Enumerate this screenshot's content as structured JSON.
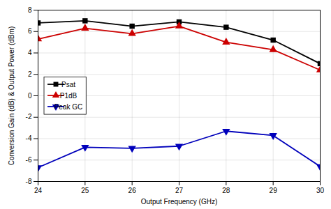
{
  "chart_data": {
    "type": "line",
    "xlabel": "Output Frequency (GHz)",
    "ylabel": "Conversion Gain (dB) & Output Power (dBm)",
    "x": [
      24,
      25,
      26,
      27,
      28,
      29,
      30
    ],
    "series": [
      {
        "name": "Psat",
        "color": "#000000",
        "marker": "square",
        "values": [
          6.8,
          7.0,
          6.5,
          6.9,
          6.4,
          5.2,
          3.0
        ]
      },
      {
        "name": "P1dB",
        "color": "#cc0000",
        "marker": "triangle-up",
        "values": [
          5.3,
          6.3,
          5.8,
          6.5,
          5.0,
          4.3,
          2.4
        ]
      },
      {
        "name": "Peak GC",
        "color": "#0000bb",
        "marker": "triangle-down",
        "values": [
          -6.7,
          -4.8,
          -4.9,
          -4.7,
          -3.3,
          -3.7,
          -6.6
        ]
      }
    ],
    "xlim": [
      24,
      30
    ],
    "ylim": [
      -8,
      8
    ],
    "xticks": [
      24,
      25,
      26,
      27,
      28,
      29,
      30
    ],
    "yticks": [
      -8,
      -6,
      -4,
      -2,
      0,
      2,
      4,
      6,
      8
    ],
    "grid": true,
    "legend": "center left"
  }
}
